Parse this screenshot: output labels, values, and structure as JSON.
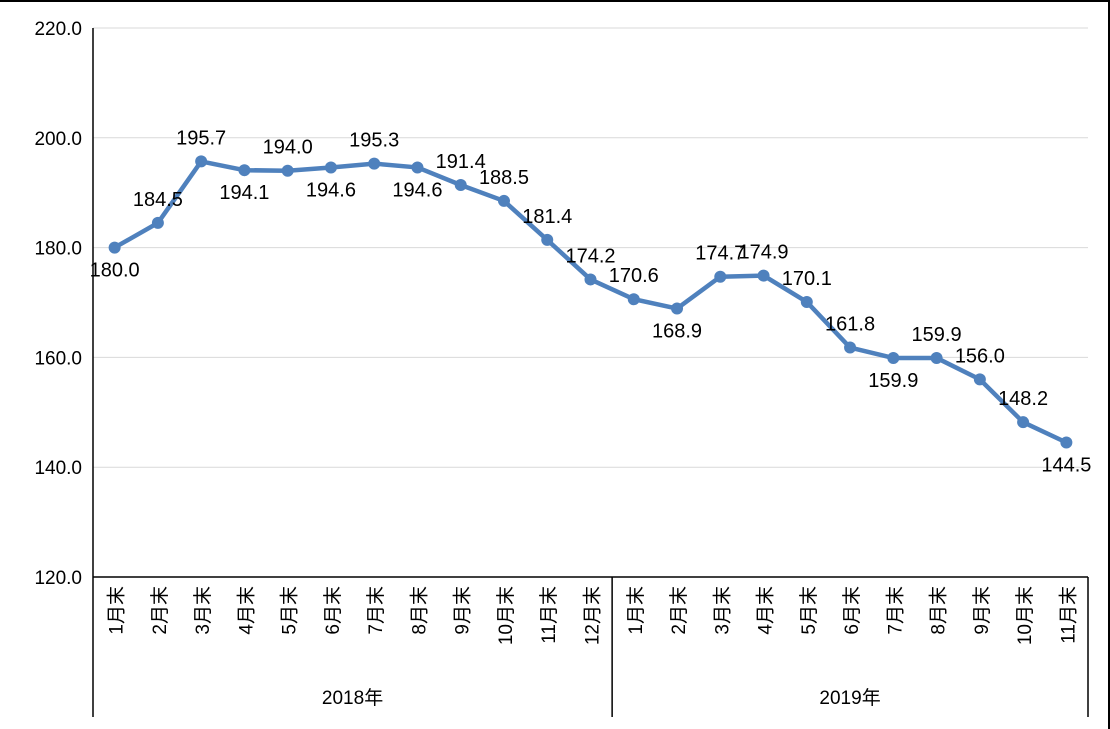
{
  "chart_data": {
    "type": "line",
    "title": "",
    "legend": "none",
    "grid": true,
    "ylim": [
      120,
      220
    ],
    "ytick_labels": [
      "120.0",
      "140.0",
      "160.0",
      "180.0",
      "200.0",
      "220.0"
    ],
    "categories": [
      "1月末",
      "2月末",
      "3月末",
      "4月末",
      "5月末",
      "6月末",
      "7月末",
      "8月末",
      "9月末",
      "10月末",
      "11月末",
      "12月末",
      "1月末",
      "2月末",
      "3月末",
      "4月末",
      "5月末",
      "6月末",
      "7月末",
      "8月末",
      "9月末",
      "10月末",
      "11月末"
    ],
    "year_groups": [
      {
        "label": "2018年",
        "count": 12
      },
      {
        "label": "2019年",
        "count": 11
      }
    ],
    "series": [
      {
        "name": "",
        "values": [
          180.0,
          184.5,
          195.7,
          194.1,
          194.0,
          194.6,
          195.3,
          194.6,
          191.4,
          188.5,
          181.4,
          174.2,
          170.6,
          168.9,
          174.7,
          174.9,
          170.1,
          161.8,
          159.9,
          159.9,
          156.0,
          148.2,
          144.5
        ],
        "value_labels": [
          "180.0",
          "184.5",
          "195.7",
          "194.1",
          "194.0",
          "194.6",
          "195.3",
          "194.6",
          "191.4",
          "188.5",
          "181.4",
          "174.2",
          "170.6",
          "168.9",
          "174.7",
          "174.9",
          "170.1",
          "161.8",
          "159.9",
          "159.9",
          "156.0",
          "148.2",
          "144.5"
        ],
        "label_positions": [
          "below",
          "above",
          "above",
          "below",
          "above",
          "below",
          "above",
          "below",
          "above",
          "above",
          "above",
          "above",
          "above",
          "below",
          "above",
          "above",
          "above",
          "above",
          "below",
          "above",
          "above",
          "above",
          "below"
        ]
      }
    ],
    "colors": {
      "line": "#4F81BD",
      "marker": "#4F81BD",
      "gridline": "#D9D9D9",
      "axis": "#000000",
      "text": "#000000",
      "background": "#FFFFFF"
    }
  }
}
